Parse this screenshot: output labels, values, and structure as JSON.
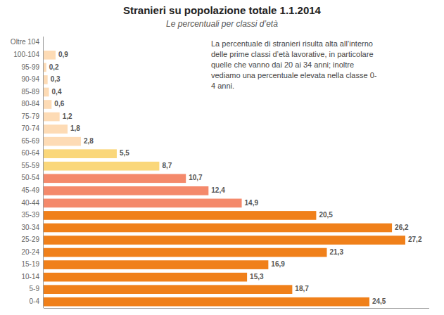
{
  "chart_data": {
    "type": "bar",
    "orientation": "horizontal",
    "title": "Stranieri su popolazione totale 1.1.2014",
    "subtitle": "Le percentuali per classi d’età",
    "categories": [
      "Oltre 104",
      "100-104",
      "95-99",
      "90-94",
      "85-89",
      "80-84",
      "75-79",
      "70-74",
      "65-69",
      "60-64",
      "55-59",
      "50-54",
      "45-49",
      "40-44",
      "35-39",
      "30-34",
      "25-29",
      "20-24",
      "15-19",
      "10-14",
      "5-9",
      "0-4"
    ],
    "values": [
      0.0,
      0.9,
      0.2,
      0.3,
      0.4,
      0.6,
      1.2,
      1.8,
      2.8,
      5.5,
      8.7,
      10.7,
      12.4,
      14.9,
      20.5,
      26.2,
      27.2,
      21.3,
      16.9,
      15.3,
      18.7,
      24.5
    ],
    "value_labels": [
      null,
      "0,9",
      "0,2",
      "0,3",
      "0,4",
      "0,6",
      "1,2",
      "1,8",
      "2,8",
      "5,5",
      "8,7",
      "10,7",
      "12,4",
      "14,9",
      "20,5",
      "26,2",
      "27,2",
      "21,3",
      "16,9",
      "15,3",
      "18,7",
      "24,5"
    ],
    "colors": [
      "#FDDBB5",
      "#FDDBB5",
      "#FDDBB5",
      "#FDDBB5",
      "#FDDBB5",
      "#FDDBB5",
      "#FDDBB5",
      "#FDDBB5",
      "#FDDBB5",
      "#FAD77A",
      "#FAD77A",
      "#F4896B",
      "#F4896B",
      "#F4896B",
      "#F0801A",
      "#F0801A",
      "#F0801A",
      "#F0801A",
      "#F0801A",
      "#F0801A",
      "#F0801A",
      "#F0801A"
    ],
    "xlim": [
      0,
      29
    ],
    "data_labels": true,
    "tick_labels": "y",
    "grid": false,
    "annotation": "La percentuale di stranieri risulta alta all’interno\ndelle prime classi d’età lavorative, in particolare\nquelle che vanno dai 20 ai 34 anni; inoltre\nvediamo una percentuale elevata nella classe 0-\n4 anni."
  }
}
